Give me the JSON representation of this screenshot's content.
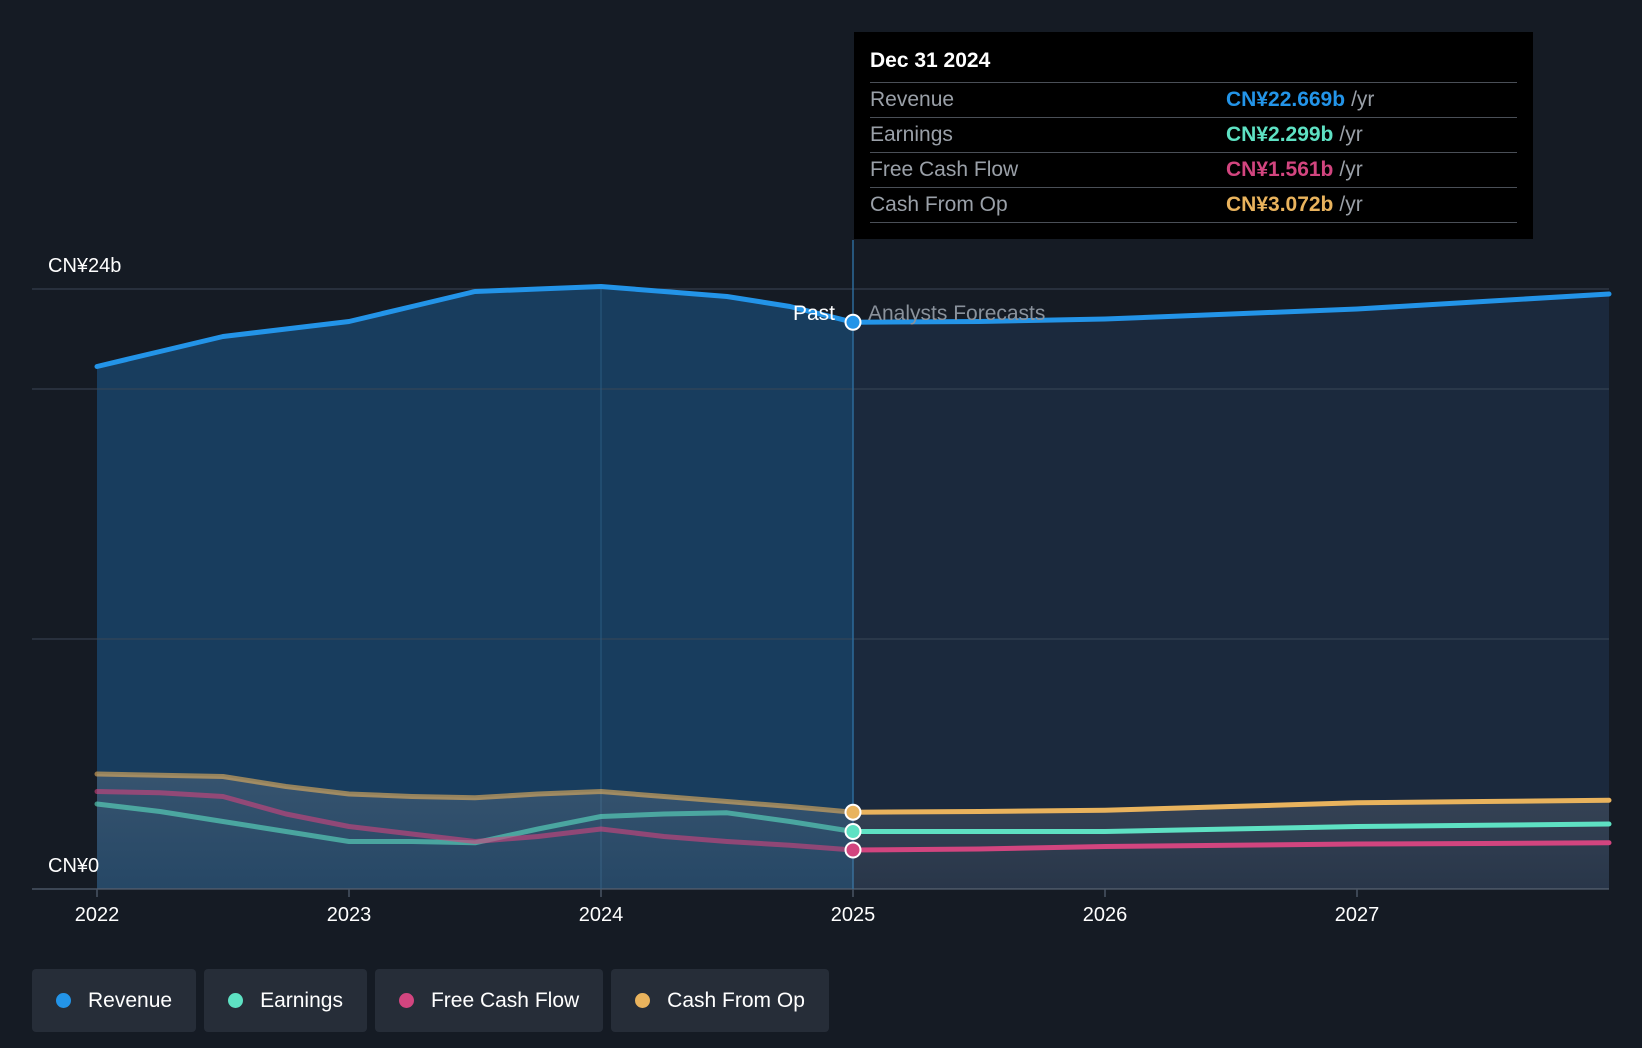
{
  "chart_data": {
    "type": "line",
    "y_axis": {
      "min_label": "CN¥0",
      "max_label": "CN¥24b",
      "ylim": [
        0,
        24
      ]
    },
    "x_ticks": [
      "2022",
      "2023",
      "2024",
      "2025",
      "2026",
      "2027"
    ],
    "xlim": [
      2022.0,
      2028.0
    ],
    "divider_x": 2025.0,
    "past_label": "Past",
    "forecast_label": "Analysts Forecasts",
    "grid": true,
    "series": [
      {
        "name": "Revenue",
        "color": "#2394e8",
        "points": [
          [
            2022.0,
            20.9
          ],
          [
            2022.25,
            21.5
          ],
          [
            2022.5,
            22.1
          ],
          [
            2022.75,
            22.4
          ],
          [
            2023.0,
            22.7
          ],
          [
            2023.25,
            23.3
          ],
          [
            2023.5,
            23.9
          ],
          [
            2023.75,
            24.0
          ],
          [
            2024.0,
            24.1
          ],
          [
            2024.25,
            23.9
          ],
          [
            2024.5,
            23.7
          ],
          [
            2024.75,
            23.3
          ],
          [
            2025.0,
            22.67
          ],
          [
            2025.5,
            22.7
          ],
          [
            2026.0,
            22.8
          ],
          [
            2026.5,
            23.0
          ],
          [
            2027.0,
            23.2
          ],
          [
            2027.5,
            23.5
          ],
          [
            2028.0,
            23.8
          ]
        ]
      },
      {
        "name": "Earnings",
        "color": "#5ee1c3",
        "points": [
          [
            2022.0,
            3.4
          ],
          [
            2022.25,
            3.1
          ],
          [
            2022.5,
            2.7
          ],
          [
            2022.75,
            2.3
          ],
          [
            2023.0,
            1.9
          ],
          [
            2023.25,
            1.9
          ],
          [
            2023.5,
            1.85
          ],
          [
            2023.75,
            2.4
          ],
          [
            2024.0,
            2.9
          ],
          [
            2024.25,
            3.0
          ],
          [
            2024.5,
            3.05
          ],
          [
            2024.75,
            2.7
          ],
          [
            2025.0,
            2.299
          ],
          [
            2025.5,
            2.3
          ],
          [
            2026.0,
            2.3
          ],
          [
            2026.5,
            2.4
          ],
          [
            2027.0,
            2.5
          ],
          [
            2027.5,
            2.55
          ],
          [
            2028.0,
            2.6
          ]
        ]
      },
      {
        "name": "Free Cash Flow",
        "color": "#d2457f",
        "points": [
          [
            2022.0,
            3.9
          ],
          [
            2022.25,
            3.85
          ],
          [
            2022.5,
            3.7
          ],
          [
            2022.75,
            3.0
          ],
          [
            2023.0,
            2.5
          ],
          [
            2023.25,
            2.2
          ],
          [
            2023.5,
            1.9
          ],
          [
            2023.75,
            2.1
          ],
          [
            2024.0,
            2.4
          ],
          [
            2024.25,
            2.1
          ],
          [
            2024.5,
            1.9
          ],
          [
            2024.75,
            1.75
          ],
          [
            2025.0,
            1.561
          ],
          [
            2025.5,
            1.6
          ],
          [
            2026.0,
            1.7
          ],
          [
            2026.5,
            1.75
          ],
          [
            2027.0,
            1.8
          ],
          [
            2027.5,
            1.82
          ],
          [
            2028.0,
            1.85
          ]
        ]
      },
      {
        "name": "Cash From Op",
        "color": "#e9b35d",
        "points": [
          [
            2022.0,
            4.6
          ],
          [
            2022.25,
            4.55
          ],
          [
            2022.5,
            4.5
          ],
          [
            2022.75,
            4.1
          ],
          [
            2023.0,
            3.8
          ],
          [
            2023.25,
            3.7
          ],
          [
            2023.5,
            3.65
          ],
          [
            2023.75,
            3.8
          ],
          [
            2024.0,
            3.9
          ],
          [
            2024.25,
            3.7
          ],
          [
            2024.5,
            3.5
          ],
          [
            2024.75,
            3.3
          ],
          [
            2025.0,
            3.072
          ],
          [
            2025.5,
            3.1
          ],
          [
            2026.0,
            3.15
          ],
          [
            2026.5,
            3.3
          ],
          [
            2027.0,
            3.45
          ],
          [
            2027.5,
            3.5
          ],
          [
            2028.0,
            3.55
          ]
        ]
      }
    ]
  },
  "tooltip": {
    "date": "Dec 31 2024",
    "rows": [
      {
        "label": "Revenue",
        "value": "CN¥22.669b",
        "unit": "/yr",
        "color": "#2394e8"
      },
      {
        "label": "Earnings",
        "value": "CN¥2.299b",
        "unit": "/yr",
        "color": "#5ee1c3"
      },
      {
        "label": "Free Cash Flow",
        "value": "CN¥1.561b",
        "unit": "/yr",
        "color": "#d2457f"
      },
      {
        "label": "Cash From Op",
        "value": "CN¥3.072b",
        "unit": "/yr",
        "color": "#e9b35d"
      }
    ]
  },
  "legend": [
    {
      "label": "Revenue",
      "color": "#2394e8"
    },
    {
      "label": "Earnings",
      "color": "#5ee1c3"
    },
    {
      "label": "Free Cash Flow",
      "color": "#d2457f"
    },
    {
      "label": "Cash From Op",
      "color": "#e9b35d"
    }
  ]
}
